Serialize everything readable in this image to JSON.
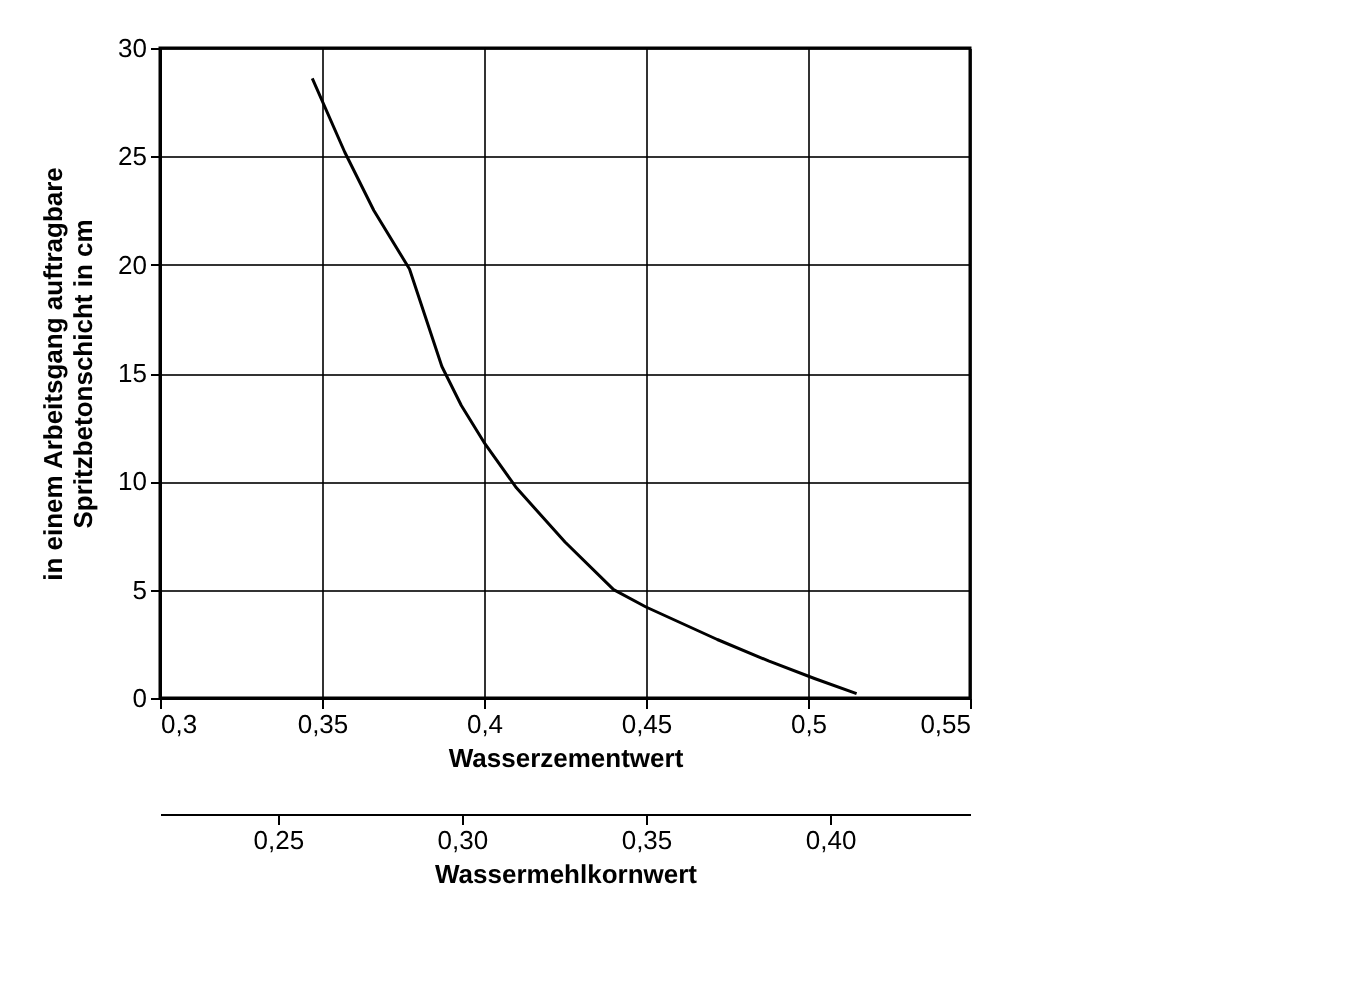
{
  "chart_data": {
    "type": "line",
    "xlabel": "Wasserzementwert",
    "ylabel": "in einem Arbeitsgang auftragbare\nSpritzbetonschicht in cm",
    "x2label": "Wassermehlkornwert",
    "series": [
      {
        "color": "#000000",
        "x": [
          0.347,
          0.357,
          0.366,
          0.377,
          0.387,
          0.393,
          0.4,
          0.41,
          0.425,
          0.44,
          0.45,
          0.472,
          0.488,
          0.502,
          0.515
        ],
        "values": [
          28.6,
          25.2,
          22.5,
          19.8,
          15.3,
          13.5,
          11.8,
          9.7,
          7.2,
          5.0,
          4.2,
          2.7,
          1.7,
          0.9,
          0.2
        ]
      }
    ],
    "xlim": [
      0.3,
      0.55
    ],
    "xticks": [
      {
        "value": 0.3,
        "label": "0,3"
      },
      {
        "value": 0.35,
        "label": "0,35"
      },
      {
        "value": 0.4,
        "label": "0,4"
      },
      {
        "value": 0.45,
        "label": "0,45"
      },
      {
        "value": 0.5,
        "label": "0,5"
      },
      {
        "value": 0.55,
        "label": "0,55"
      }
    ],
    "ylim": [
      0,
      30
    ],
    "yticks": [
      0,
      5,
      10,
      15,
      20,
      25,
      30
    ],
    "x2lim": [
      0.218,
      0.438
    ],
    "x2ticks": [
      {
        "value": 0.25,
        "label": "0,25"
      },
      {
        "value": 0.3,
        "label": "0,30"
      },
      {
        "value": 0.35,
        "label": "0,35"
      },
      {
        "value": 0.4,
        "label": "0,40"
      }
    ],
    "grid": true,
    "legend": false,
    "marker": "none",
    "line_style": "solid"
  }
}
